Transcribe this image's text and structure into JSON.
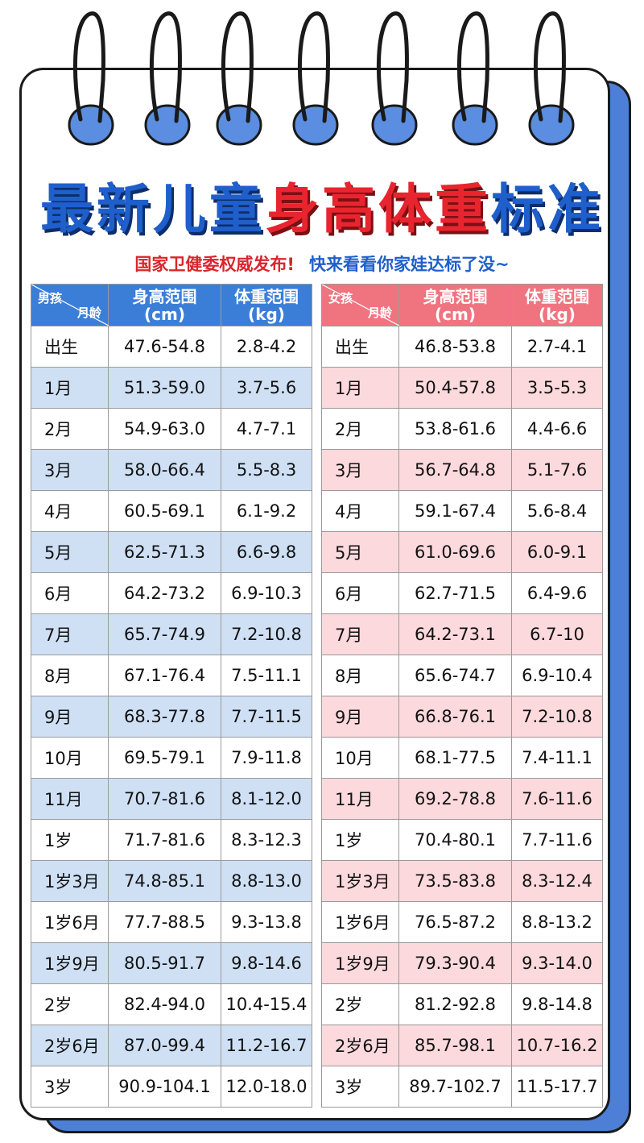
{
  "title": {
    "part1": "最新儿童",
    "part2": "身高体重",
    "part3": "标准"
  },
  "subtitle": {
    "left": "国家卫健委权威发布!",
    "right": "快来看看你家娃达标了没~"
  },
  "colors": {
    "blue_accent": "#3b7ed8",
    "pink_accent": "#f07480",
    "blue_row": "#cfe0f5",
    "pink_row": "#fbd9dd",
    "title_blue": "#1f5fcc",
    "title_red": "#e8252e"
  },
  "boys": {
    "header": {
      "gender": "男孩",
      "age": "月龄",
      "height": "身高范围",
      "height_unit": "(cm)",
      "weight": "体重范围",
      "weight_unit": "(kg)"
    },
    "rows": [
      {
        "age": "出生",
        "height": "47.6-54.8",
        "weight": "2.8-4.2"
      },
      {
        "age": "1月",
        "height": "51.3-59.0",
        "weight": "3.7-5.6"
      },
      {
        "age": "2月",
        "height": "54.9-63.0",
        "weight": "4.7-7.1"
      },
      {
        "age": "3月",
        "height": "58.0-66.4",
        "weight": "5.5-8.3"
      },
      {
        "age": "4月",
        "height": "60.5-69.1",
        "weight": "6.1-9.2"
      },
      {
        "age": "5月",
        "height": "62.5-71.3",
        "weight": "6.6-9.8"
      },
      {
        "age": "6月",
        "height": "64.2-73.2",
        "weight": "6.9-10.3"
      },
      {
        "age": "7月",
        "height": "65.7-74.9",
        "weight": "7.2-10.8"
      },
      {
        "age": "8月",
        "height": "67.1-76.4",
        "weight": "7.5-11.1"
      },
      {
        "age": "9月",
        "height": "68.3-77.8",
        "weight": "7.7-11.5"
      },
      {
        "age": "10月",
        "height": "69.5-79.1",
        "weight": "7.9-11.8"
      },
      {
        "age": "11月",
        "height": "70.7-81.6",
        "weight": "8.1-12.0"
      },
      {
        "age": "1岁",
        "height": "71.7-81.6",
        "weight": "8.3-12.3"
      },
      {
        "age": "1岁3月",
        "height": "74.8-85.1",
        "weight": "8.8-13.0"
      },
      {
        "age": "1岁6月",
        "height": "77.7-88.5",
        "weight": "9.3-13.8"
      },
      {
        "age": "1岁9月",
        "height": "80.5-91.7",
        "weight": "9.8-14.6"
      },
      {
        "age": "2岁",
        "height": "82.4-94.0",
        "weight": "10.4-15.4"
      },
      {
        "age": "2岁6月",
        "height": "87.0-99.4",
        "weight": "11.2-16.7"
      },
      {
        "age": "3岁",
        "height": "90.9-104.1",
        "weight": "12.0-18.0"
      }
    ]
  },
  "girls": {
    "header": {
      "gender": "女孩",
      "age": "月龄",
      "height": "身高范围",
      "height_unit": "(cm)",
      "weight": "体重范围",
      "weight_unit": "(kg)"
    },
    "rows": [
      {
        "age": "出生",
        "height": "46.8-53.8",
        "weight": "2.7-4.1"
      },
      {
        "age": "1月",
        "height": "50.4-57.8",
        "weight": "3.5-5.3"
      },
      {
        "age": "2月",
        "height": "53.8-61.6",
        "weight": "4.4-6.6"
      },
      {
        "age": "3月",
        "height": "56.7-64.8",
        "weight": "5.1-7.6"
      },
      {
        "age": "4月",
        "height": "59.1-67.4",
        "weight": "5.6-8.4"
      },
      {
        "age": "5月",
        "height": "61.0-69.6",
        "weight": "6.0-9.1"
      },
      {
        "age": "6月",
        "height": "62.7-71.5",
        "weight": "6.4-9.6"
      },
      {
        "age": "7月",
        "height": "64.2-73.1",
        "weight": "6.7-10"
      },
      {
        "age": "8月",
        "height": "65.6-74.7",
        "weight": "6.9-10.4"
      },
      {
        "age": "9月",
        "height": "66.8-76.1",
        "weight": "7.2-10.8"
      },
      {
        "age": "10月",
        "height": "68.1-77.5",
        "weight": "7.4-11.1"
      },
      {
        "age": "11月",
        "height": "69.2-78.8",
        "weight": "7.6-11.6"
      },
      {
        "age": "1岁",
        "height": "70.4-80.1",
        "weight": "7.7-11.6"
      },
      {
        "age": "1岁3月",
        "height": "73.5-83.8",
        "weight": "8.3-12.4"
      },
      {
        "age": "1岁6月",
        "height": "76.5-87.2",
        "weight": "8.8-13.2"
      },
      {
        "age": "1岁9月",
        "height": "79.3-90.4",
        "weight": "9.3-14.0"
      },
      {
        "age": "2岁",
        "height": "81.2-92.8",
        "weight": "9.8-14.8"
      },
      {
        "age": "2岁6月",
        "height": "85.7-98.1",
        "weight": "10.7-16.2"
      },
      {
        "age": "3岁",
        "height": "89.7-102.7",
        "weight": "11.5-17.7"
      }
    ]
  }
}
